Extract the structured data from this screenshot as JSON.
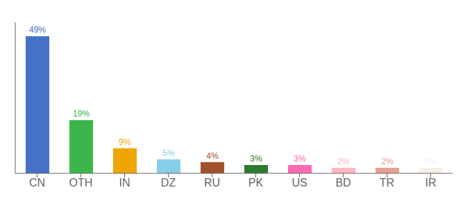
{
  "chart_data": {
    "type": "bar",
    "categories": [
      "CN",
      "OTH",
      "IN",
      "DZ",
      "RU",
      "PK",
      "US",
      "BD",
      "TR",
      "IR"
    ],
    "values": [
      49,
      19,
      9,
      5,
      4,
      3,
      3,
      2,
      2,
      2
    ],
    "value_labels": [
      "49%",
      "19%",
      "9%",
      "5%",
      "4%",
      "3%",
      "3%",
      "2%",
      "2%",
      "2%"
    ],
    "colors": [
      "#4472c4",
      "#3cb54a",
      "#f0a500",
      "#87ceeb",
      "#a0522d",
      "#2d7a2d",
      "#ff69b4",
      "#ffb6c1",
      "#e8a090",
      "#f5f0e8"
    ],
    "ylim": [
      0,
      54
    ],
    "data_labels": true,
    "tick_labels": "x",
    "grid": false
  }
}
